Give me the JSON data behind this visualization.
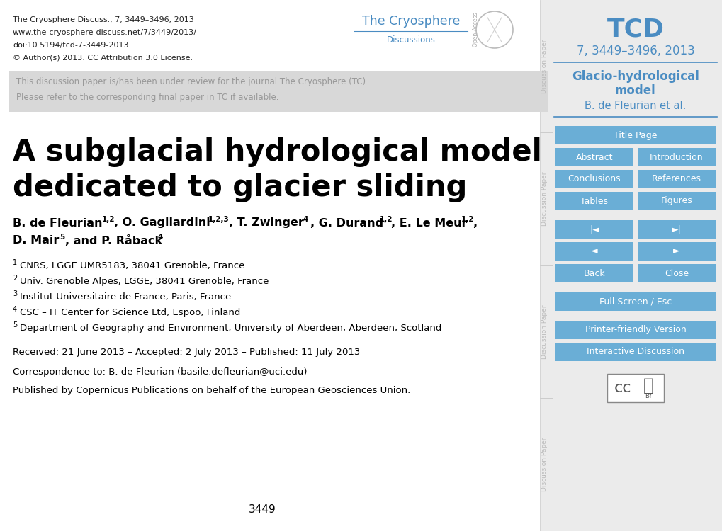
{
  "bg_color": "#ffffff",
  "sidebar_bg": "#ebebeb",
  "sidebar_text_color": "#4a8cc2",
  "sidebar_button_color": "#6aaed6",
  "sidebar_button_text": "#ffffff",
  "divider_color": "#4a8cc2",
  "gray_box_color": "#d8d8d8",
  "gray_text_color": "#999999",
  "vert_label_color": "#bbbbbb",
  "top_meta_lines": [
    "The Cryosphere Discuss., 7, 3449–3496, 2013",
    "www.the-cryosphere-discuss.net/7/3449/2013/",
    "doi:10.5194/tcd-7-3449-2013",
    "© Author(s) 2013. CC Attribution 3.0 License."
  ],
  "gray_box_lines": [
    "This discussion paper is/has been under review for the journal The Cryosphere (TC).",
    "Please refer to the corresponding final paper in TC if available."
  ],
  "paper_title_line1": "A subglacial hydrological model",
  "paper_title_line2": "dedicated to glacier sliding",
  "affiliations": [
    "1CNRS, LGGE UMR5183, 38041 Grenoble, France",
    "2Univ. Grenoble Alpes, LGGE, 38041 Grenoble, France",
    "3Institut Universitaire de France, Paris, France",
    "4CSC – IT Center for Science Ltd, Espoo, Finland",
    "5Department of Geography and Environment, University of Aberdeen, Aberdeen, Scotland"
  ],
  "affiliation_superscripts": [
    "1",
    "2",
    "3",
    "4",
    "5"
  ],
  "received_line": "Received: 21 June 2013 – Accepted: 2 July 2013 – Published: 11 July 2013",
  "correspondence_line": "Correspondence to: B. de Fleurian (basile.defleurian@uci.edu)",
  "published_line": "Published by Copernicus Publications on behalf of the European Geosciences Union.",
  "page_number": "3449",
  "tcd_title": "TCD",
  "tcd_subtitle": "7, 3449–3496, 2013",
  "sidebar_paper_title1": "Glacio-hydrological",
  "sidebar_paper_title2": "model",
  "sidebar_author": "B. de Fleurian et al."
}
